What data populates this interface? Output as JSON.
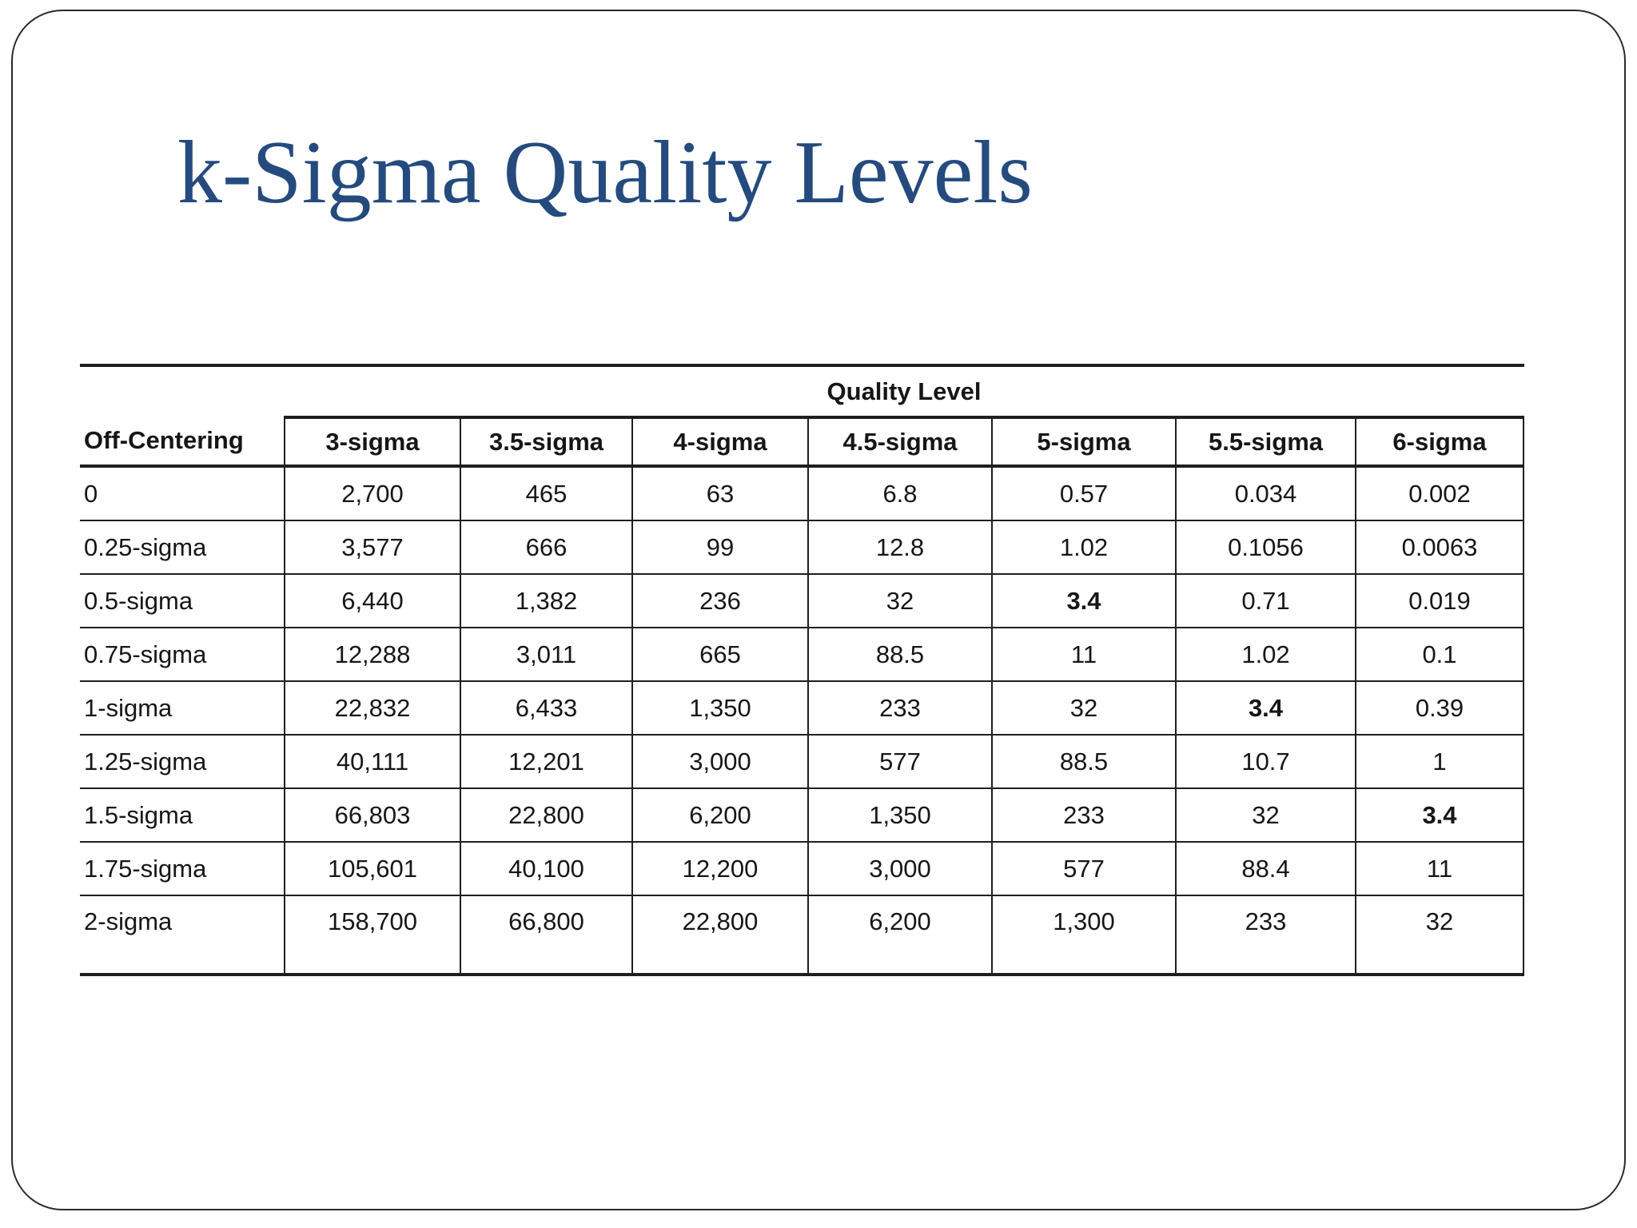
{
  "slide": {
    "title": "k-Sigma Quality Levels"
  },
  "colors": {
    "title_text": "#254b7e",
    "table_text": "#161616",
    "table_lines": "#1f1f1f",
    "background": "#ffffff"
  },
  "table": {
    "group_header": "Quality Level",
    "columns": [
      "Off-Centering",
      "3-sigma",
      "3.5-sigma",
      "4-sigma",
      "4.5-sigma",
      "5-sigma",
      "5.5-sigma",
      "6-sigma"
    ],
    "rows": [
      {
        "label": "0",
        "values": [
          "2,700",
          "465",
          "63",
          "6.8",
          "0.57",
          "0.034",
          "0.002"
        ]
      },
      {
        "label": "0.25-sigma",
        "values": [
          "3,577",
          "666",
          "99",
          "12.8",
          "1.02",
          "0.1056",
          "0.0063"
        ]
      },
      {
        "label": "0.5-sigma",
        "values": [
          "6,440",
          "1,382",
          "236",
          "32",
          "3.4",
          "0.71",
          "0.019"
        ]
      },
      {
        "label": "0.75-sigma",
        "values": [
          "12,288",
          "3,011",
          "665",
          "88.5",
          "11",
          "1.02",
          "0.1"
        ]
      },
      {
        "label": "1-sigma",
        "values": [
          "22,832",
          "6,433",
          "1,350",
          "233",
          "32",
          "3.4",
          "0.39"
        ]
      },
      {
        "label": "1.25-sigma",
        "values": [
          "40,111",
          "12,201",
          "3,000",
          "577",
          "88.5",
          "10.7",
          "1"
        ]
      },
      {
        "label": "1.5-sigma",
        "values": [
          "66,803",
          "22,800",
          "6,200",
          "1,350",
          "233",
          "32",
          "3.4"
        ]
      },
      {
        "label": "1.75-sigma",
        "values": [
          "105,601",
          "40,100",
          "12,200",
          "3,000",
          "577",
          "88.4",
          "11"
        ]
      },
      {
        "label": "2-sigma",
        "values": [
          "158,700",
          "66,800",
          "22,800",
          "6,200",
          "1,300",
          "233",
          "32"
        ]
      }
    ],
    "bold_cells": [
      {
        "row": "0.5-sigma",
        "column": "5-sigma",
        "value": "3.4"
      },
      {
        "row": "1-sigma",
        "column": "5.5-sigma",
        "value": "3.4"
      },
      {
        "row": "1.5-sigma",
        "column": "6-sigma",
        "value": "3.4"
      }
    ]
  }
}
